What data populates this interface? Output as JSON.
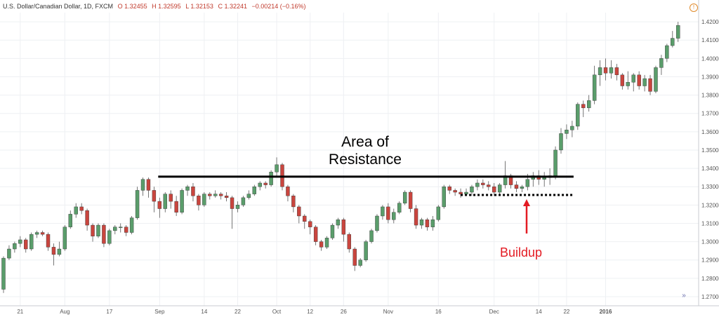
{
  "header": {
    "symbol": "U.S. Dollar/Canadian Dollar, 1D, FXCM",
    "open": "O 1.32455",
    "high": "H 1.32595",
    "low": "L 1.32153",
    "close": "C 1.32241",
    "change": "−0.00214 (−0.16%)"
  },
  "annotations": {
    "resistance_label_line1": "Area of",
    "resistance_label_line2": "Resistance",
    "buildup_label": "Buildup"
  },
  "colors": {
    "up": "#5a9d6b",
    "down": "#c9453e",
    "grid": "#eef0f3",
    "axis_text": "#555555",
    "arrow": "#e31b23",
    "line": "#000000"
  },
  "chart_data": {
    "type": "candlestick",
    "title": "",
    "xlabel": "",
    "ylabel": "",
    "ylim": [
      1.265,
      1.425
    ],
    "y_ticks": [
      "1.27000",
      "1.28000",
      "1.29000",
      "1.30000",
      "1.31000",
      "1.32000",
      "1.33000",
      "1.34000",
      "1.35000",
      "1.36000",
      "1.37000",
      "1.38000",
      "1.39000",
      "1.40000",
      "1.41000",
      "1.42000"
    ],
    "x_tick_labels": [
      {
        "label": "21",
        "index": 3
      },
      {
        "label": "Aug",
        "index": 11
      },
      {
        "label": "17",
        "index": 19
      },
      {
        "label": "Sep",
        "index": 28
      },
      {
        "label": "14",
        "index": 36
      },
      {
        "label": "22",
        "index": 42
      },
      {
        "label": "Oct",
        "index": 49
      },
      {
        "label": "12",
        "index": 55
      },
      {
        "label": "26",
        "index": 61
      },
      {
        "label": "Nov",
        "index": 69
      },
      {
        "label": "16",
        "index": 78
      },
      {
        "label": "Dec",
        "index": 88
      },
      {
        "label": "14",
        "index": 96
      },
      {
        "label": "22",
        "index": 101
      },
      {
        "label": "2016",
        "index": 108
      }
    ],
    "resistance_level": 1.3355,
    "buildup_level": 1.3255,
    "candles": [
      [
        1.274,
        1.291,
        1.272,
        1.292
      ],
      [
        1.291,
        1.296,
        1.29,
        1.298
      ],
      [
        1.296,
        1.299,
        1.294,
        1.3
      ],
      [
        1.299,
        1.301,
        1.297,
        1.303
      ],
      [
        1.301,
        1.296,
        1.294,
        1.302
      ],
      [
        1.296,
        1.304,
        1.295,
        1.305
      ],
      [
        1.304,
        1.305,
        1.302,
        1.306
      ],
      [
        1.305,
        1.304,
        1.303,
        1.306
      ],
      [
        1.304,
        1.297,
        1.295,
        1.305
      ],
      [
        1.297,
        1.293,
        1.287,
        1.299
      ],
      [
        1.293,
        1.296,
        1.292,
        1.3
      ],
      [
        1.296,
        1.308,
        1.295,
        1.309
      ],
      [
        1.308,
        1.315,
        1.307,
        1.317
      ],
      [
        1.315,
        1.319,
        1.313,
        1.321
      ],
      [
        1.319,
        1.317,
        1.315,
        1.321
      ],
      [
        1.317,
        1.309,
        1.306,
        1.318
      ],
      [
        1.309,
        1.303,
        1.3,
        1.31
      ],
      [
        1.303,
        1.309,
        1.302,
        1.31
      ],
      [
        1.309,
        1.299,
        1.297,
        1.31
      ],
      [
        1.299,
        1.306,
        1.298,
        1.307
      ],
      [
        1.306,
        1.308,
        1.304,
        1.309
      ],
      [
        1.308,
        1.308,
        1.305,
        1.31
      ],
      [
        1.308,
        1.305,
        1.303,
        1.309
      ],
      [
        1.305,
        1.313,
        1.304,
        1.314
      ],
      [
        1.313,
        1.328,
        1.312,
        1.33
      ],
      [
        1.328,
        1.334,
        1.325,
        1.335
      ],
      [
        1.334,
        1.328,
        1.324,
        1.335
      ],
      [
        1.328,
        1.322,
        1.316,
        1.33
      ],
      [
        1.322,
        1.318,
        1.313,
        1.324
      ],
      [
        1.318,
        1.326,
        1.316,
        1.327
      ],
      [
        1.326,
        1.322,
        1.318,
        1.328
      ],
      [
        1.322,
        1.316,
        1.314,
        1.325
      ],
      [
        1.316,
        1.328,
        1.315,
        1.329
      ],
      [
        1.328,
        1.33,
        1.325,
        1.331
      ],
      [
        1.33,
        1.325,
        1.322,
        1.332
      ],
      [
        1.325,
        1.32,
        1.317,
        1.326
      ],
      [
        1.32,
        1.326,
        1.319,
        1.327
      ],
      [
        1.326,
        1.325,
        1.323,
        1.327
      ],
      [
        1.325,
        1.326,
        1.324,
        1.328
      ],
      [
        1.326,
        1.325,
        1.323,
        1.327
      ],
      [
        1.325,
        1.324,
        1.322,
        1.327
      ],
      [
        1.324,
        1.318,
        1.307,
        1.325
      ],
      [
        1.318,
        1.32,
        1.316,
        1.322
      ],
      [
        1.32,
        1.324,
        1.319,
        1.325
      ],
      [
        1.324,
        1.326,
        1.323,
        1.328
      ],
      [
        1.326,
        1.33,
        1.325,
        1.331
      ],
      [
        1.33,
        1.332,
        1.328,
        1.333
      ],
      [
        1.332,
        1.331,
        1.329,
        1.333
      ],
      [
        1.331,
        1.338,
        1.33,
        1.339
      ],
      [
        1.338,
        1.342,
        1.336,
        1.346
      ],
      [
        1.342,
        1.33,
        1.328,
        1.343
      ],
      [
        1.33,
        1.325,
        1.322,
        1.331
      ],
      [
        1.325,
        1.319,
        1.316,
        1.326
      ],
      [
        1.319,
        1.314,
        1.31,
        1.32
      ],
      [
        1.314,
        1.311,
        1.307,
        1.315
      ],
      [
        1.311,
        1.308,
        1.304,
        1.312
      ],
      [
        1.308,
        1.3,
        1.298,
        1.309
      ],
      [
        1.3,
        1.297,
        1.295,
        1.301
      ],
      [
        1.297,
        1.302,
        1.296,
        1.303
      ],
      [
        1.302,
        1.309,
        1.301,
        1.31
      ],
      [
        1.309,
        1.312,
        1.307,
        1.313
      ],
      [
        1.312,
        1.304,
        1.3,
        1.313
      ],
      [
        1.304,
        1.296,
        1.294,
        1.305
      ],
      [
        1.296,
        1.287,
        1.284,
        1.297
      ],
      [
        1.287,
        1.29,
        1.286,
        1.291
      ],
      [
        1.29,
        1.3,
        1.289,
        1.301
      ],
      [
        1.3,
        1.306,
        1.299,
        1.307
      ],
      [
        1.306,
        1.314,
        1.305,
        1.315
      ],
      [
        1.314,
        1.319,
        1.312,
        1.32
      ],
      [
        1.319,
        1.312,
        1.31,
        1.321
      ],
      [
        1.312,
        1.316,
        1.31,
        1.318
      ],
      [
        1.316,
        1.321,
        1.315,
        1.322
      ],
      [
        1.321,
        1.327,
        1.32,
        1.328
      ],
      [
        1.327,
        1.318,
        1.316,
        1.328
      ],
      [
        1.318,
        1.309,
        1.307,
        1.32
      ],
      [
        1.309,
        1.312,
        1.307,
        1.313
      ],
      [
        1.312,
        1.308,
        1.306,
        1.313
      ],
      [
        1.308,
        1.312,
        1.306,
        1.314
      ],
      [
        1.312,
        1.319,
        1.311,
        1.32
      ],
      [
        1.319,
        1.33,
        1.318,
        1.331
      ],
      [
        1.33,
        1.328,
        1.326,
        1.331
      ],
      [
        1.328,
        1.327,
        1.325,
        1.329
      ],
      [
        1.327,
        1.326,
        1.324,
        1.329
      ],
      [
        1.326,
        1.327,
        1.325,
        1.329
      ],
      [
        1.327,
        1.33,
        1.325,
        1.331
      ],
      [
        1.33,
        1.332,
        1.328,
        1.334
      ],
      [
        1.332,
        1.331,
        1.329,
        1.334
      ],
      [
        1.331,
        1.33,
        1.328,
        1.333
      ],
      [
        1.33,
        1.327,
        1.325,
        1.332
      ],
      [
        1.327,
        1.331,
        1.326,
        1.332
      ],
      [
        1.331,
        1.336,
        1.329,
        1.344
      ],
      [
        1.336,
        1.331,
        1.329,
        1.337
      ],
      [
        1.331,
        1.329,
        1.327,
        1.333
      ],
      [
        1.329,
        1.33,
        1.327,
        1.331
      ],
      [
        1.33,
        1.334,
        1.328,
        1.337
      ],
      [
        1.334,
        1.336,
        1.33,
        1.338
      ],
      [
        1.336,
        1.334,
        1.331,
        1.339
      ],
      [
        1.334,
        1.335,
        1.33,
        1.338
      ],
      [
        1.335,
        1.336,
        1.331,
        1.34
      ],
      [
        1.336,
        1.35,
        1.334,
        1.352
      ],
      [
        1.35,
        1.359,
        1.348,
        1.362
      ],
      [
        1.359,
        1.361,
        1.356,
        1.364
      ],
      [
        1.361,
        1.363,
        1.357,
        1.366
      ],
      [
        1.363,
        1.375,
        1.361,
        1.376
      ],
      [
        1.375,
        1.373,
        1.368,
        1.377
      ],
      [
        1.373,
        1.377,
        1.371,
        1.38
      ],
      [
        1.377,
        1.391,
        1.375,
        1.396
      ],
      [
        1.391,
        1.395,
        1.385,
        1.399
      ],
      [
        1.395,
        1.392,
        1.388,
        1.4
      ],
      [
        1.392,
        1.395,
        1.389,
        1.399
      ],
      [
        1.395,
        1.391,
        1.388,
        1.397
      ],
      [
        1.391,
        1.385,
        1.383,
        1.392
      ],
      [
        1.385,
        1.387,
        1.383,
        1.393
      ],
      [
        1.387,
        1.391,
        1.382,
        1.392
      ],
      [
        1.391,
        1.385,
        1.383,
        1.393
      ],
      [
        1.385,
        1.389,
        1.382,
        1.391
      ],
      [
        1.389,
        1.382,
        1.38,
        1.391
      ],
      [
        1.382,
        1.395,
        1.381,
        1.396
      ],
      [
        1.395,
        1.4,
        1.391,
        1.402
      ],
      [
        1.4,
        1.407,
        1.398,
        1.408
      ],
      [
        1.407,
        1.411,
        1.406,
        1.415
      ],
      [
        1.411,
        1.418,
        1.409,
        1.42
      ]
    ]
  }
}
